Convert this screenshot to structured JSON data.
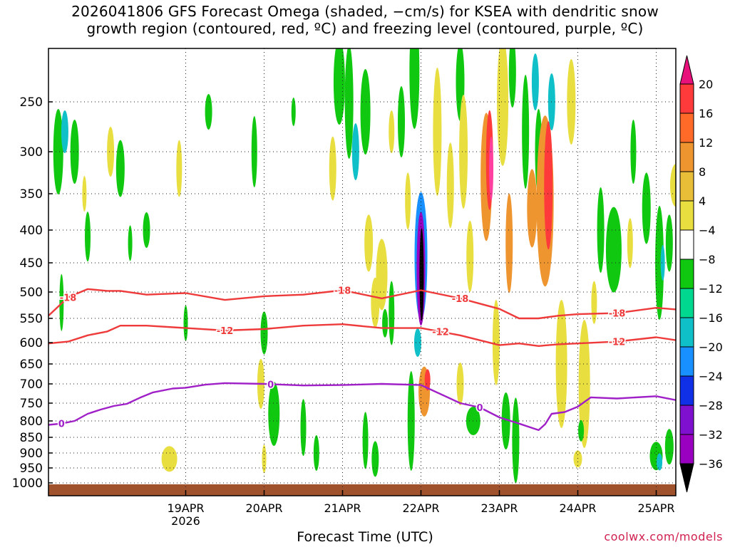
{
  "chart_data": {
    "type": "heatmap",
    "title_line1": "2026041806 GFS Forecast Omega (shaded, −cm/s) for KSEA with dendritic snow",
    "title_line2": "growth region (contoured, red, ºC) and freezing level (contoured, purple, ºC)",
    "xlabel": "Forecast Time (UTC)",
    "credit": "coolwx.com/models",
    "x_start_hour": -42,
    "x_end_hour": 150,
    "x_ticks": [
      {
        "hour": 0,
        "label": "19APR",
        "sublabel": "2026"
      },
      {
        "hour": 24,
        "label": "20APR"
      },
      {
        "hour": 48,
        "label": "21APR"
      },
      {
        "hour": 72,
        "label": "22APR"
      },
      {
        "hour": 96,
        "label": "23APR"
      },
      {
        "hour": 120,
        "label": "24APR"
      },
      {
        "hour": 144,
        "label": "25APR"
      }
    ],
    "y_ticks": [
      250,
      300,
      350,
      400,
      450,
      500,
      550,
      600,
      650,
      700,
      750,
      800,
      850,
      900,
      950,
      1000
    ],
    "colorbar": {
      "labels": [
        "20",
        "16",
        "12",
        "8",
        "4",
        "−4",
        "−8",
        "−12",
        "−16",
        "−20",
        "−24",
        "−28",
        "−32",
        "−36"
      ],
      "colors": [
        "#ff40a0",
        "#ff3a3a",
        "#ff6a28",
        "#ee9530",
        "#e8be38",
        "#e8de40",
        "#ffffff",
        "#10c810",
        "#00d890",
        "#10c0c8",
        "#1890ff",
        "#1030e8",
        "#8010d0",
        "#9a00c0",
        "#a8a8a8",
        "#000000"
      ],
      "bottom_color": "#000000",
      "top_color": "#e8107a"
    },
    "contours": [
      {
        "label": "-18",
        "color": "#ee3a3a",
        "x": [
          -42,
          -36,
          -30,
          -24,
          -20,
          -12,
          0,
          12,
          24,
          36,
          48,
          60,
          72,
          84,
          90,
          96,
          102,
          108,
          114,
          120,
          132,
          144,
          150
        ],
        "y": [
          545,
          510,
          495,
          498,
          498,
          505,
          502,
          515,
          508,
          505,
          497,
          512,
          497,
          512,
          522,
          532,
          550,
          550,
          545,
          542,
          540,
          530,
          533
        ],
        "label_hours": [
          -36,
          48,
          84,
          132
        ]
      },
      {
        "label": "-12",
        "color": "#ee3a3a",
        "x": [
          -42,
          -36,
          -30,
          -24,
          -20,
          -12,
          0,
          12,
          24,
          36,
          48,
          60,
          72,
          84,
          96,
          102,
          108,
          114,
          120,
          132,
          144,
          150
        ],
        "y": [
          602,
          598,
          585,
          577,
          565,
          565,
          570,
          575,
          572,
          565,
          562,
          570,
          570,
          585,
          606,
          602,
          608,
          604,
          602,
          598,
          589,
          595
        ],
        "label_hours": [
          12,
          78,
          132
        ]
      },
      {
        "label": "0",
        "color": "#a020c8",
        "x": [
          -42,
          -38,
          -34,
          -30,
          -26,
          -22,
          -18,
          -14,
          -10,
          -4,
          0,
          6,
          12,
          24,
          36,
          48,
          60,
          72,
          84,
          90,
          96,
          102,
          108,
          110,
          112,
          116,
          120,
          124,
          132,
          144,
          150
        ],
        "y": [
          812,
          808,
          800,
          780,
          768,
          758,
          752,
          736,
          722,
          712,
          710,
          702,
          698,
          700,
          704,
          703,
          700,
          703,
          750,
          762,
          790,
          808,
          828,
          810,
          780,
          775,
          760,
          735,
          738,
          732,
          742
        ],
        "label_hours": [
          -38,
          26,
          90
        ]
      }
    ]
  }
}
